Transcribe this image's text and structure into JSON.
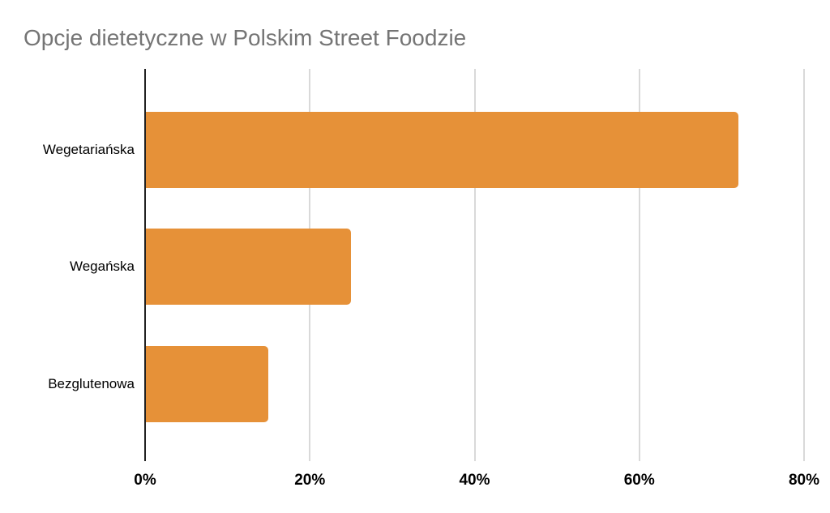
{
  "chart_data": {
    "type": "bar",
    "orientation": "horizontal",
    "title": "Opcje dietetyczne w Polskim Street Foodzie",
    "categories": [
      "Wegetariańska",
      "Wegańska",
      "Bezglutenowa"
    ],
    "values": [
      72,
      25,
      15
    ],
    "value_unit": "%",
    "xlabel": "",
    "ylabel": "",
    "xlim": [
      0,
      80
    ],
    "x_ticks": [
      {
        "value": 0,
        "label": "0%"
      },
      {
        "value": 20,
        "label": "20%"
      },
      {
        "value": 40,
        "label": "40%"
      },
      {
        "value": 60,
        "label": "60%"
      },
      {
        "value": 80,
        "label": "80%"
      }
    ],
    "grid": true,
    "legend": "none",
    "colors": {
      "bar": "#E69138",
      "title_text": "#757575",
      "axis_text": "#000000",
      "gridline": "#d9d9d9",
      "baseline": "#212121",
      "background": "#ffffff"
    }
  }
}
